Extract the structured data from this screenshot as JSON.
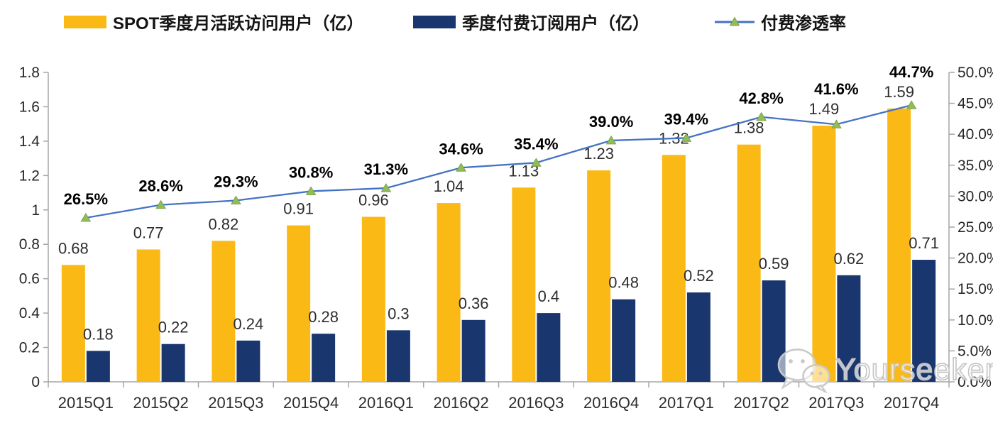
{
  "chart_data": {
    "type": "combo",
    "title": "",
    "categories": [
      "2015Q1",
      "2015Q2",
      "2015Q3",
      "2015Q4",
      "2016Q1",
      "2016Q2",
      "2016Q3",
      "2016Q4",
      "2017Q1",
      "2017Q2",
      "2017Q3",
      "2017Q4"
    ],
    "series": [
      {
        "name": "SPOT季度月活跃访问用户（亿）",
        "type": "bar",
        "axis": "left",
        "color": "#FBB916",
        "values": [
          0.68,
          0.77,
          0.82,
          0.91,
          0.96,
          1.04,
          1.13,
          1.23,
          1.32,
          1.38,
          1.49,
          1.59
        ],
        "labels": [
          "0.68",
          "0.77",
          "0.82",
          "0.91",
          "0.96",
          "1.04",
          "1.13",
          "1.23",
          "1.32",
          "1.38",
          "1.49",
          "1.59"
        ]
      },
      {
        "name": "季度付费订阅用户（亿）",
        "type": "bar",
        "axis": "left",
        "color": "#1A366E",
        "values": [
          0.18,
          0.22,
          0.24,
          0.28,
          0.3,
          0.36,
          0.4,
          0.48,
          0.52,
          0.59,
          0.62,
          0.71
        ],
        "labels": [
          "0.18",
          "0.22",
          "0.24",
          "0.28",
          "0.3",
          "0.36",
          "0.4",
          "0.48",
          "0.52",
          "0.59",
          "0.62",
          "0.71"
        ]
      },
      {
        "name": "付费渗透率",
        "type": "line",
        "axis": "right",
        "color": "#4472C4",
        "marker": "triangle",
        "marker_color": "#8FBE56",
        "marker_stroke": "#7FA24A",
        "values": [
          26.5,
          28.6,
          29.3,
          30.8,
          31.3,
          34.6,
          35.4,
          39.0,
          39.4,
          42.8,
          41.6,
          44.7
        ],
        "labels": [
          "26.5%",
          "28.6%",
          "29.3%",
          "30.8%",
          "31.3%",
          "34.6%",
          "35.4%",
          "39.0%",
          "39.4%",
          "42.8%",
          "41.6%",
          "44.7%"
        ]
      }
    ],
    "left_axis": {
      "min": 0,
      "max": 1.8,
      "step": 0.2,
      "tick_labels": [
        "0",
        "0.2",
        "0.4",
        "0.6",
        "0.8",
        "1",
        "1.2",
        "1.4",
        "1.6",
        "1.8"
      ]
    },
    "right_axis": {
      "min": 0,
      "max": 50,
      "step": 5,
      "tick_labels": [
        "0.0%",
        "5.0%",
        "10.0%",
        "15.0%",
        "20.0%",
        "25.0%",
        "30.0%",
        "35.0%",
        "40.0%",
        "45.0%",
        "50.0%"
      ]
    },
    "grid": false,
    "legend_position": "top",
    "axis_color": "#A6A6A6",
    "label_color": "#2D2D2D",
    "pct_label_color": "#000000"
  },
  "watermark": {
    "text": "Yourseeker",
    "icon": "wechat-icon"
  }
}
